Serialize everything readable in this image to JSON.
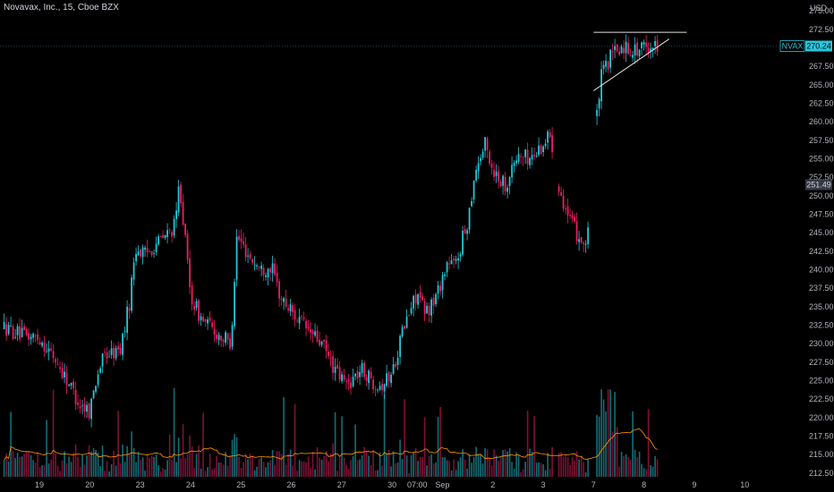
{
  "header": {
    "title": "Novavax, Inc., 15, Cboe BZX"
  },
  "colors": {
    "background": "#000000",
    "up": "#26c6da",
    "down": "#e91e63",
    "volume_ma": "#ff9800",
    "text": "#b2b5be",
    "price_tag": "#26c6da",
    "prev_tag": "#363a45"
  },
  "chart_data": {
    "type": "candlestick",
    "title": "Novavax, Inc., 15, Cboe BZX",
    "currency_label": "USD",
    "y_ticks": [
      "275.00",
      "272.50",
      "267.50",
      "265.00",
      "262.50",
      "260.00",
      "257.50",
      "255.00",
      "252.50",
      "250.00",
      "247.50",
      "245.00",
      "242.50",
      "240.00",
      "237.50",
      "235.00",
      "232.50",
      "230.00",
      "227.50",
      "225.00",
      "222.50",
      "220.00",
      "217.50",
      "215.00",
      "212.50"
    ],
    "ylim": [
      212.0,
      275.5
    ],
    "x_ticks": [
      {
        "label": "19",
        "pos": 0.0
      },
      {
        "label": "20",
        "pos": 1.0
      },
      {
        "label": "23",
        "pos": 2.0
      },
      {
        "label": "24",
        "pos": 3.0
      },
      {
        "label": "25",
        "pos": 4.0
      },
      {
        "label": "26",
        "pos": 5.0
      },
      {
        "label": "27",
        "pos": 6.0
      },
      {
        "label": "30",
        "pos": 7.0
      },
      {
        "label": "07:00",
        "pos": 7.5
      },
      {
        "label": "Sep",
        "pos": 8.0
      },
      {
        "label": "2",
        "pos": 9.0
      },
      {
        "label": "3",
        "pos": 10.0
      },
      {
        "label": "7",
        "pos": 11.0
      },
      {
        "label": "8",
        "pos": 12.0
      },
      {
        "label": "9",
        "pos": 13.0
      },
      {
        "label": "10",
        "pos": 14.0
      }
    ],
    "price_tags": [
      {
        "symbol": "NVAX",
        "value": "270.24",
        "price": 270.24
      },
      {
        "value": "251.49",
        "price": 251.49
      }
    ],
    "trendlines": [
      {
        "name": "resistance",
        "from": [
          11.0,
          272.1
        ],
        "to": [
          12.85,
          272.1
        ]
      },
      {
        "name": "support",
        "from": [
          11.0,
          264.2
        ],
        "to": [
          12.5,
          271.2
        ]
      }
    ],
    "waypoints": [
      [
        -0.7,
        232.2
      ],
      [
        -0.3,
        231.0
      ],
      [
        0.0,
        230.8
      ],
      [
        0.3,
        228.0
      ],
      [
        0.6,
        224.5
      ],
      [
        0.8,
        221.8
      ],
      [
        1.0,
        221.0
      ],
      [
        1.15,
        226.0
      ],
      [
        1.3,
        228.5
      ],
      [
        1.6,
        229.0
      ],
      [
        1.8,
        236.0
      ],
      [
        1.9,
        243.0
      ],
      [
        2.1,
        242.0
      ],
      [
        2.3,
        243.5
      ],
      [
        2.5,
        244.5
      ],
      [
        2.7,
        246.0
      ],
      [
        2.78,
        252.0
      ],
      [
        3.0,
        236.5
      ],
      [
        3.2,
        233.5
      ],
      [
        3.5,
        231.5
      ],
      [
        3.8,
        230.0
      ],
      [
        3.92,
        244.5
      ],
      [
        4.2,
        241.5
      ],
      [
        4.4,
        240.0
      ],
      [
        4.6,
        240.5
      ],
      [
        4.8,
        236.0
      ],
      [
        5.0,
        234.5
      ],
      [
        5.3,
        232.0
      ],
      [
        5.6,
        230.0
      ],
      [
        5.9,
        226.0
      ],
      [
        6.1,
        224.5
      ],
      [
        6.4,
        226.5
      ],
      [
        6.6,
        225.0
      ],
      [
        6.8,
        224.5
      ],
      [
        7.0,
        226.0
      ],
      [
        7.2,
        231.5
      ],
      [
        7.5,
        237.0
      ],
      [
        7.65,
        234.0
      ],
      [
        7.85,
        236.0
      ],
      [
        8.1,
        241.0
      ],
      [
        8.25,
        240.5
      ],
      [
        8.5,
        246.5
      ],
      [
        8.65,
        253.5
      ],
      [
        8.85,
        257.0
      ],
      [
        9.0,
        253.5
      ],
      [
        9.25,
        251.5
      ],
      [
        9.5,
        255.5
      ],
      [
        9.75,
        255.0
      ],
      [
        10.0,
        257.0
      ],
      [
        10.15,
        258.5
      ],
      [
        10.25,
        253.0
      ],
      [
        10.5,
        247.0
      ],
      [
        10.7,
        244.5
      ],
      [
        10.85,
        243.5
      ],
      [
        11.0,
        251.5
      ],
      [
        11.05,
        259.5
      ],
      [
        11.15,
        266.0
      ],
      [
        11.35,
        269.0
      ],
      [
        11.6,
        270.2
      ],
      [
        11.85,
        269.6
      ],
      [
        12.1,
        270.3
      ],
      [
        12.3,
        270.24
      ]
    ],
    "gaps": [
      [
        10.2,
        10.3
      ],
      [
        10.9,
        11.05
      ]
    ],
    "volume": {
      "ma_period": 20,
      "baseline": 0.06
    }
  }
}
